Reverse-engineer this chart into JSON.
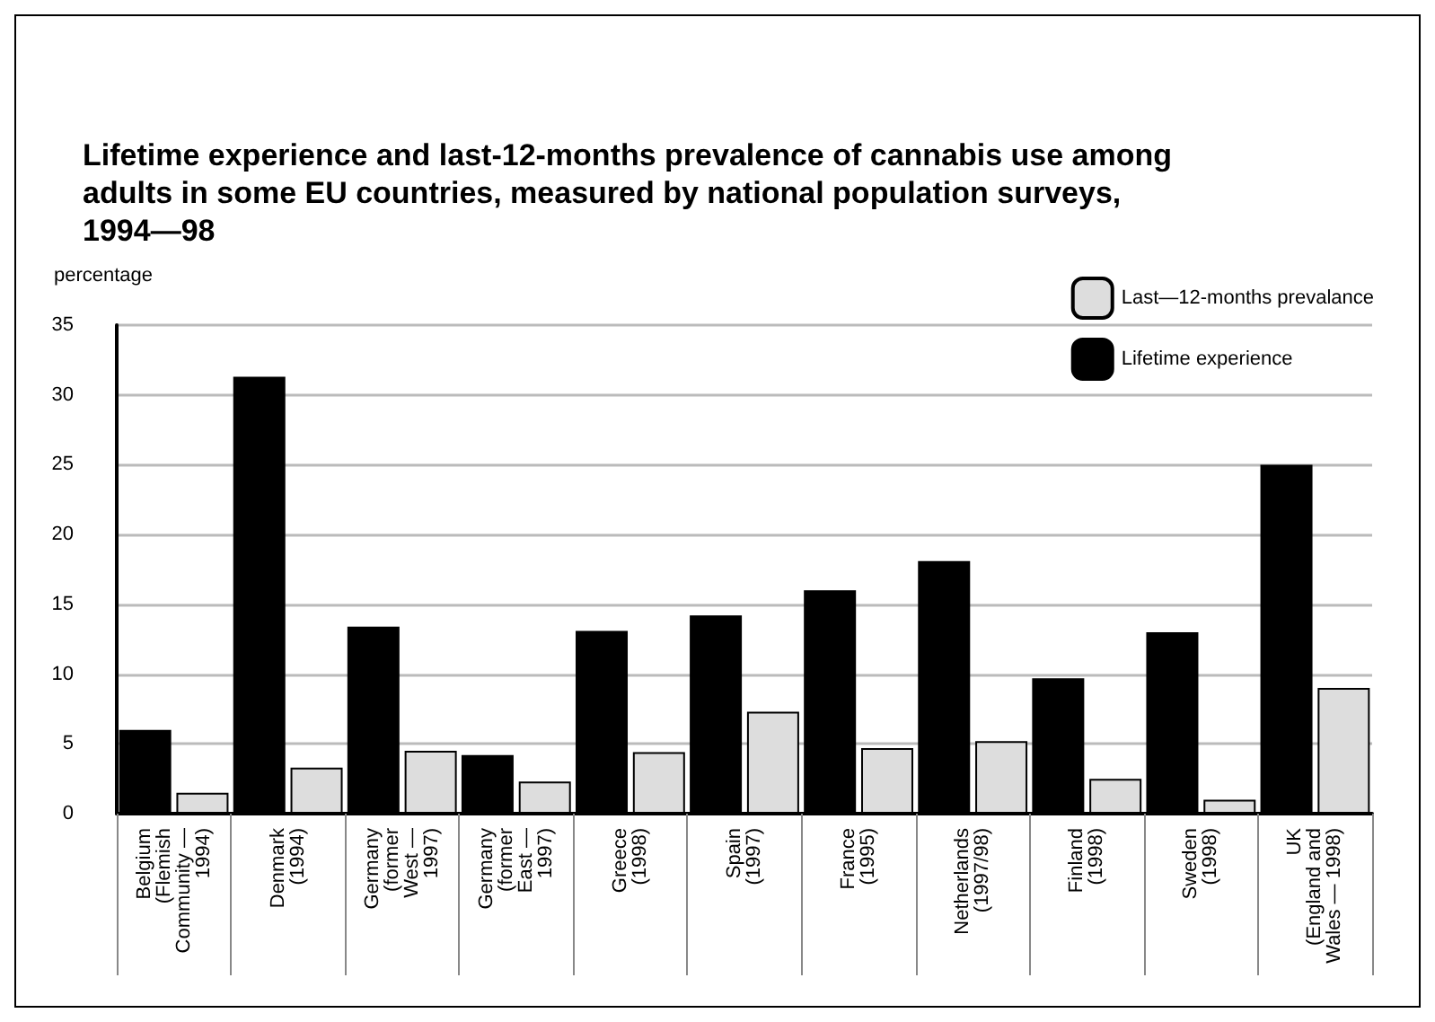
{
  "chart_data": {
    "type": "bar",
    "title": "Lifetime experience and last-12-months prevalence of cannabis use among\nadults in some EU countries, measured by national population surveys,\n1994—98",
    "ylabel": "percentage",
    "categories": [
      "Belgium\n(Flemish\nCommunity —\n1994)",
      "Denmark\n(1994)",
      "Germany\n(former\nWest —\n1997)",
      "Germany\n(former\nEast —\n1997)",
      "Greece\n(1998)",
      "Spain\n(1997)",
      "France\n(1995)",
      "Netherlands\n(1997/98)",
      "Finland\n(1998)",
      "Sweden\n(1998)",
      "UK\n(England and\nWales — 1998)"
    ],
    "series": [
      {
        "name": "Lifetime experience",
        "color": "#000000",
        "values": [
          6.0,
          31.3,
          13.4,
          4.2,
          13.1,
          14.2,
          16.0,
          18.1,
          9.7,
          13.0,
          25.0
        ]
      },
      {
        "name": "Last—12-months prevalance",
        "color": "#dddddd",
        "values": [
          1.5,
          3.3,
          4.5,
          2.3,
          4.4,
          7.3,
          4.7,
          5.2,
          2.5,
          1.0,
          9.0
        ]
      }
    ],
    "ylim": [
      0,
      35
    ],
    "yticks": [
      0,
      5,
      10,
      15,
      20,
      25,
      30,
      35
    ],
    "grid": "y",
    "legend": "top right"
  }
}
